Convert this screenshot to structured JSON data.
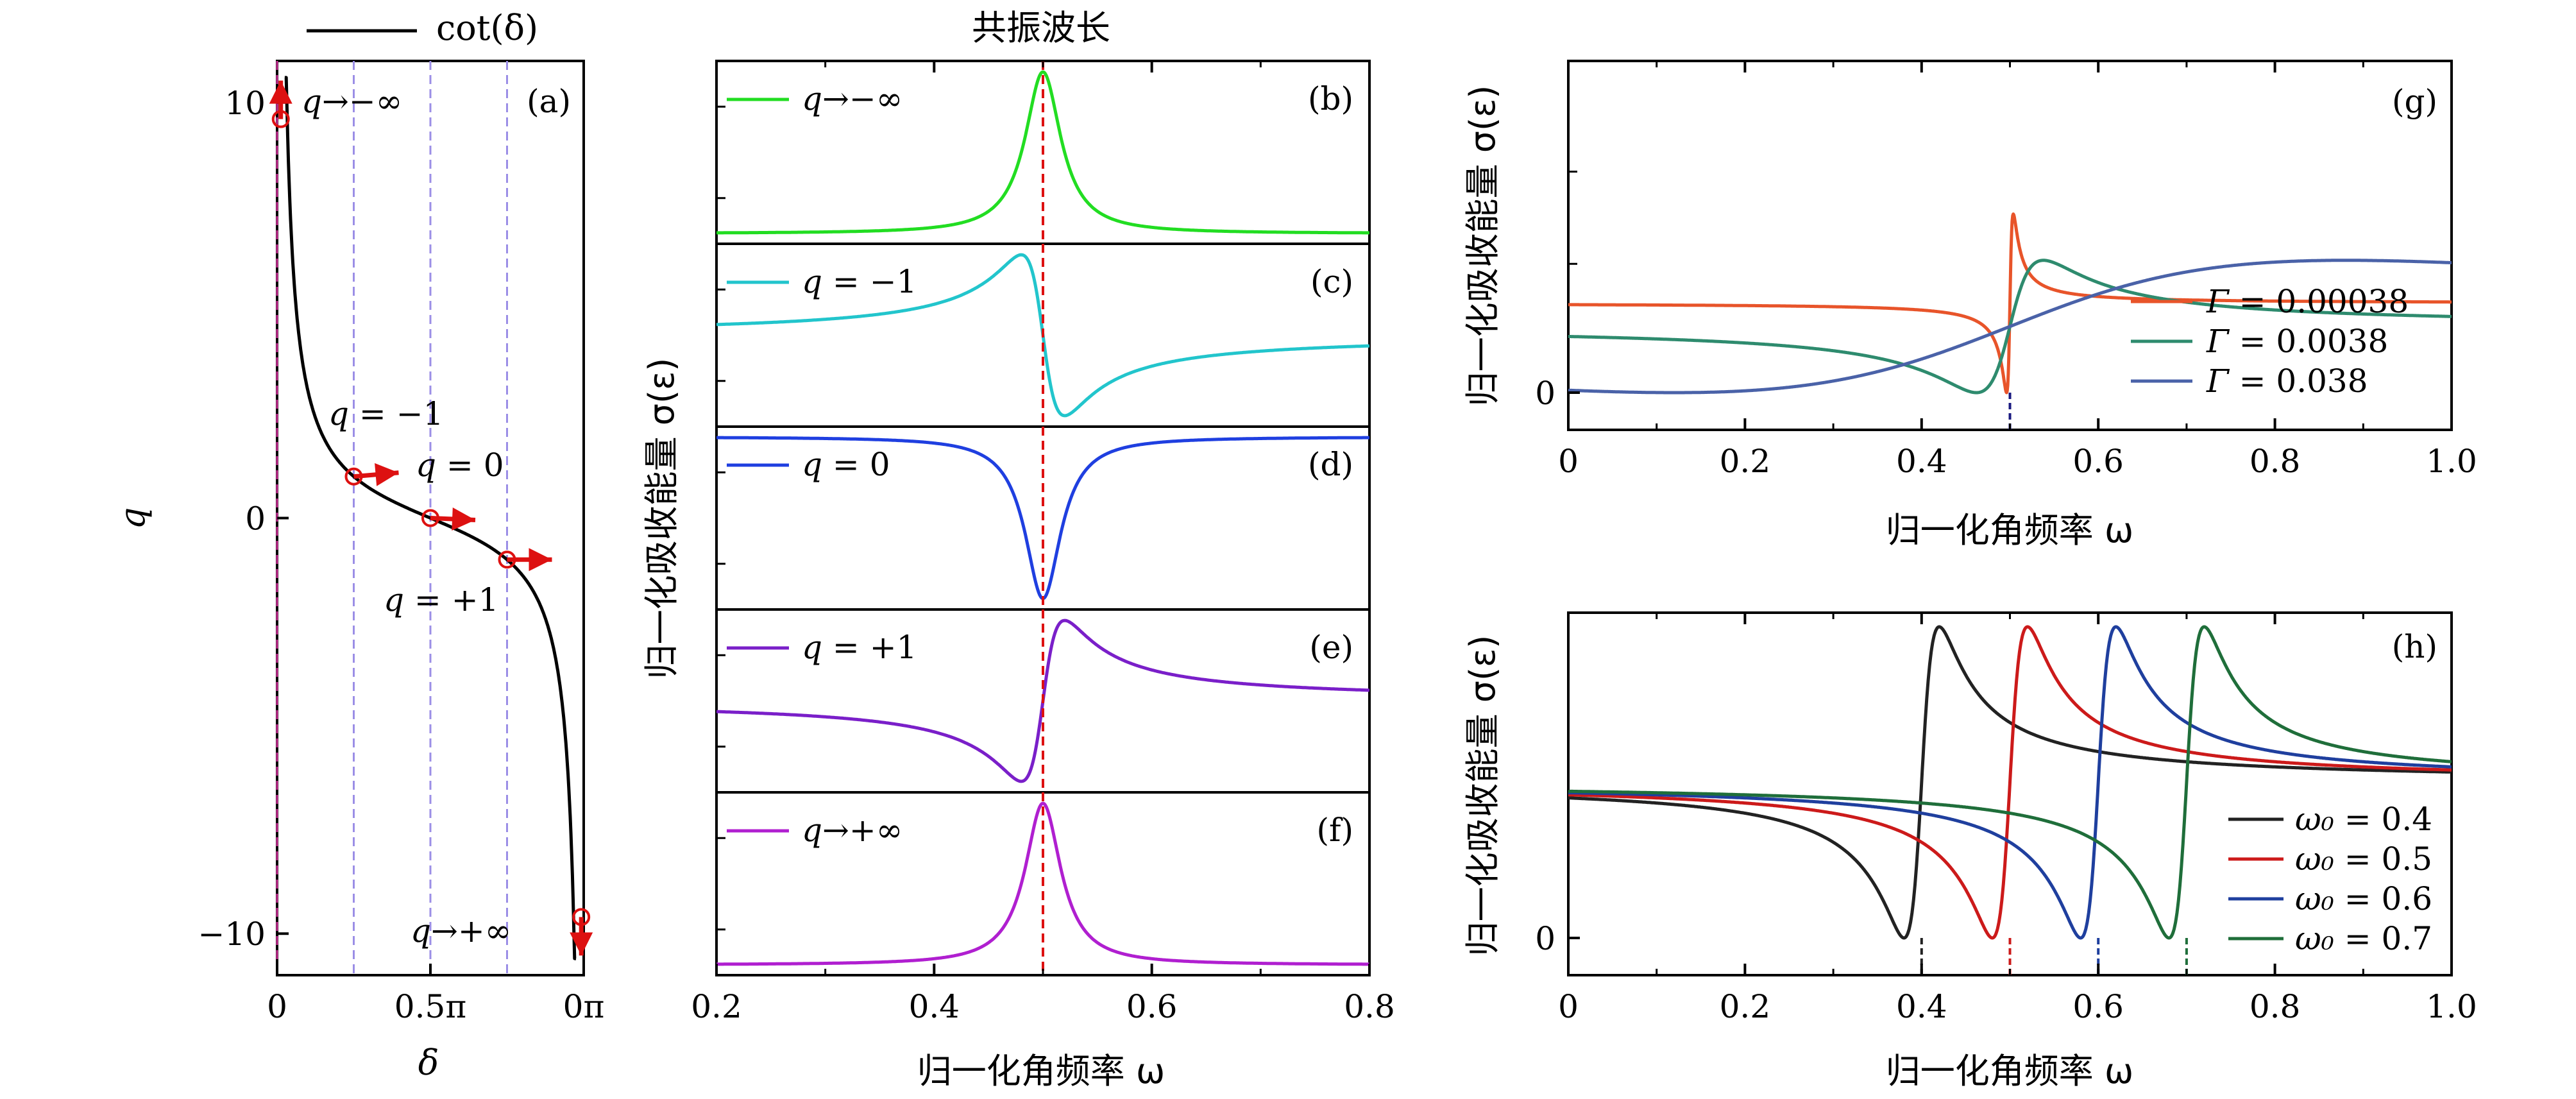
{
  "chart_data": [
    {
      "panel": "(a)",
      "type": "line",
      "top_legend": "cot(δ)",
      "xlabel": "δ",
      "ylabel": "q",
      "xlim": [
        0,
        1
      ],
      "ylim": [
        -11,
        11
      ],
      "x_ticks": [
        "0",
        "0.5π",
        "0π"
      ],
      "y_ticks": [
        "10",
        "0",
        "−10"
      ],
      "reference_lines_x": [
        0,
        0.25,
        0.5,
        0.75
      ],
      "points": [
        {
          "label": "q→−∞",
          "delta": 0.03,
          "q": 10.3
        },
        {
          "label": "q = −1",
          "delta": 0.25,
          "q": 1.0
        },
        {
          "label": "q = 0",
          "delta": 0.5,
          "q": 0.0
        },
        {
          "label": "q = +1",
          "delta": 0.75,
          "q": -1.0
        },
        {
          "label": "q→+∞",
          "delta": 0.97,
          "q": -10.3
        }
      ],
      "grid": false
    },
    {
      "type": "line",
      "xlabel": "归一化角频率 ω",
      "ylabel": "归一化吸收能量 σ(ε)",
      "top_annotation": "共振波长",
      "xlim": [
        0.2,
        0.8
      ],
      "x_ticks": [
        "0.2",
        "0.4",
        "0.6",
        "0.8"
      ],
      "resonance_line_x": 0.5,
      "gamma": 0.02,
      "panels": [
        {
          "tag": "(b)",
          "name": "q→−∞",
          "color": "#22dd22"
        },
        {
          "tag": "(c)",
          "name": "q = −1",
          "color": "#22c5cc"
        },
        {
          "tag": "(d)",
          "name": "q = 0",
          "color": "#1f3fe0"
        },
        {
          "tag": "(e)",
          "name": "q = +1",
          "color": "#7a1fc9"
        },
        {
          "tag": "(f)",
          "name": "q→+∞",
          "color": "#b01fd0"
        }
      ],
      "grid": false
    },
    {
      "panel": "(g)",
      "type": "line",
      "xlabel": "归一化角频率 ω",
      "ylabel": "归一化吸收能量 σ(ε)",
      "xlim": [
        0,
        1
      ],
      "x_ticks": [
        "0",
        "0.2",
        "0.4",
        "0.6",
        "0.8",
        "1.0"
      ],
      "y_ticks": [
        "0"
      ],
      "omega0": 0.5,
      "q": 1,
      "series": [
        {
          "name": "Γ = 0.00038",
          "gamma": 0.00038,
          "color": "#e8542a"
        },
        {
          "name": "Γ = 0.0038",
          "gamma": 0.0038,
          "color": "#2e8b6e"
        },
        {
          "name": "Γ = 0.038",
          "gamma": 0.038,
          "color": "#4a62a8"
        }
      ],
      "legend_position": "right",
      "grid": false
    },
    {
      "panel": "(h)",
      "type": "line",
      "xlabel": "归一化角频率 ω",
      "ylabel": "归一化吸收能量 σ(ε)",
      "xlim": [
        0,
        1
      ],
      "x_ticks": [
        "0",
        "0.2",
        "0.4",
        "0.6",
        "0.8",
        "1.0"
      ],
      "y_ticks": [
        "0"
      ],
      "gamma": 0.02,
      "q": 1,
      "series": [
        {
          "name": "ω₀ = 0.4",
          "omega0": 0.4,
          "color": "#222222"
        },
        {
          "name": "ω₀ = 0.5",
          "omega0": 0.5,
          "color": "#cc1a1a"
        },
        {
          "name": "ω₀ = 0.6",
          "omega0": 0.6,
          "color": "#1f3f9e"
        },
        {
          "name": "ω₀ = 0.7",
          "omega0": 0.7,
          "color": "#1f6e3a"
        }
      ],
      "legend_position": "bottom-right",
      "grid": false
    }
  ]
}
